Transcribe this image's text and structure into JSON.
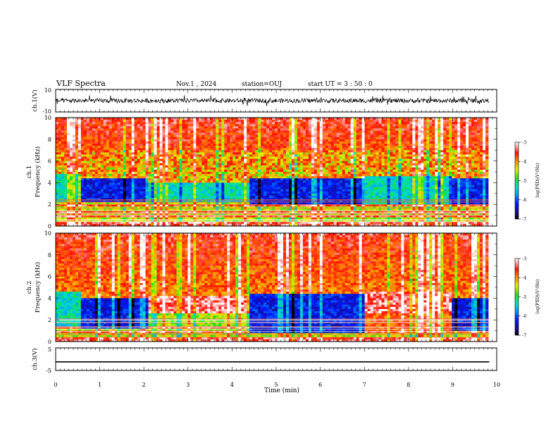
{
  "header": {
    "title": "VLF Spectra",
    "date": "Nov.1  , 2024",
    "station": "station=OUJ",
    "start_time": "start  UT  =  3 : 50 : 0"
  },
  "chart_data": [
    {
      "type": "line",
      "panel": "ch1-waveform",
      "ylabel": "ch.1(V)",
      "ylim": [
        -10,
        10
      ],
      "ytick_labels": [
        "10",
        "-10"
      ],
      "x_range_min": [
        0,
        9.83
      ]
    },
    {
      "type": "heatmap",
      "panel": "ch1-spectrogram",
      "ylabel_line1": "ch.1",
      "ylabel_line2": "Frequency (kHz)",
      "ylim": [
        0,
        10
      ],
      "ytick_labels": [
        "0",
        "2",
        "4",
        "6",
        "8",
        "10"
      ],
      "colorbar": {
        "label": "log(PSD)(V²/Hz)",
        "range": [
          -7,
          -3
        ],
        "tick_labels": [
          "-3",
          "-4",
          "-5",
          "-6",
          "-7"
        ]
      },
      "segments": [
        {
          "t": [
            0,
            0.55
          ],
          "quiet_band_khz": [
            2.2,
            4.8
          ],
          "note": "green/blue"
        },
        {
          "t": [
            0.55,
            2.1
          ],
          "quiet_band_khz": [
            2.2,
            4.3
          ],
          "note": "dark blue"
        },
        {
          "t": [
            2.1,
            4.4
          ],
          "quiet_band_khz": [
            2.2,
            4.0
          ],
          "note": "green/yellow"
        },
        {
          "t": [
            4.4,
            7.0
          ],
          "quiet_band_khz": [
            2.0,
            4.3
          ],
          "note": "dark blue"
        },
        {
          "t": [
            7.0,
            9.0
          ],
          "quiet_band_khz": [
            2.0,
            4.5
          ],
          "note": "green/blue"
        },
        {
          "t": [
            9.0,
            9.83
          ],
          "quiet_band_khz": [
            2.0,
            4.3
          ],
          "note": "dark blue"
        }
      ]
    },
    {
      "type": "heatmap",
      "panel": "ch2-spectrogram",
      "ylabel_line1": "ch.2",
      "ylabel_line2": "Frequency (kHz)",
      "ylim": [
        0,
        10
      ],
      "ytick_labels": [
        "0",
        "2",
        "4",
        "6",
        "8",
        "10"
      ],
      "colorbar": {
        "label": "log(PSD)(V²/Hz)",
        "range": [
          -7,
          -3
        ],
        "tick_labels": [
          "-3",
          "-4",
          "-5",
          "-6",
          "-7"
        ]
      },
      "segments": [
        {
          "t": [
            0,
            0.55
          ],
          "quiet_band_khz": [
            1.5,
            4.5
          ],
          "note": "green"
        },
        {
          "t": [
            0.55,
            2.1
          ],
          "quiet_band_khz": [
            1.2,
            4.0
          ],
          "note": "dark blue"
        },
        {
          "t": [
            2.1,
            4.4
          ],
          "quiet_band_khz": [
            1.5,
            4.2
          ],
          "note": "yellow/red"
        },
        {
          "t": [
            4.4,
            7.0
          ],
          "quiet_band_khz": [
            0.8,
            4.3
          ],
          "note": "dark blue"
        },
        {
          "t": [
            7.0,
            9.0
          ],
          "quiet_band_khz": [
            1.0,
            4.6
          ],
          "note": "red/white"
        },
        {
          "t": [
            9.0,
            9.83
          ],
          "quiet_band_khz": [
            1.0,
            4.0
          ],
          "note": "dark blue"
        }
      ]
    },
    {
      "type": "line",
      "panel": "ch3-waveform",
      "ylabel": "ch.3(V)",
      "ylim": [
        -5,
        5
      ],
      "ytick_labels": [
        "5",
        "-5"
      ],
      "constant_value": -1.2
    }
  ],
  "xaxis": {
    "label": "Time  (min)",
    "range": [
      0,
      10
    ],
    "tick_labels": [
      "0",
      "1",
      "2",
      "3",
      "4",
      "5",
      "6",
      "7",
      "8",
      "9",
      "10"
    ]
  },
  "colors": {
    "ink": "#000000",
    "background": "#ffffff"
  }
}
